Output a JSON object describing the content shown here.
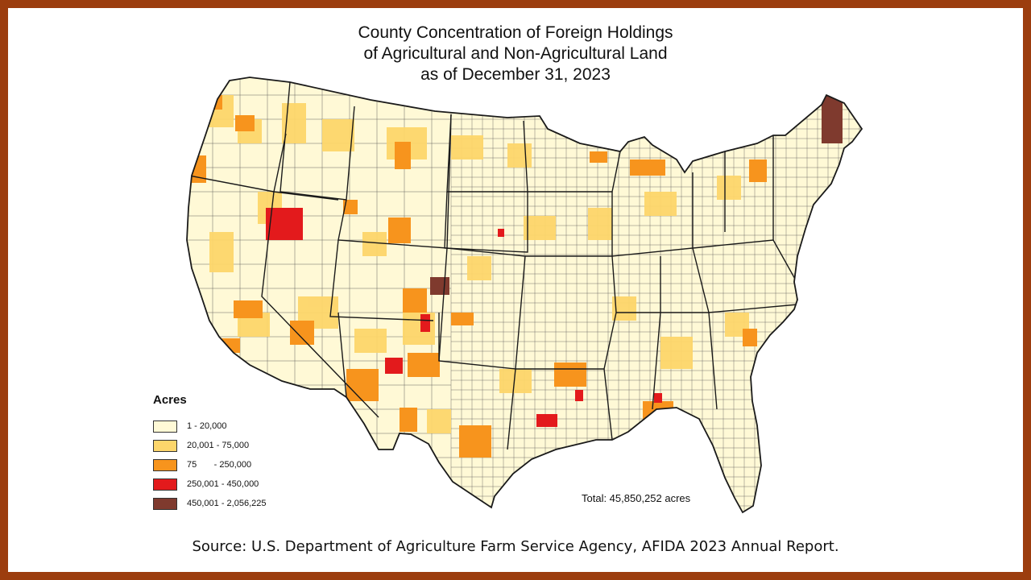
{
  "title": {
    "line1": "County Concentration of Foreign Holdings",
    "line2": "of Agricultural and Non-Agricultural Land",
    "line3": "as of December 31, 2023"
  },
  "legend": {
    "title": "Acres",
    "items": [
      {
        "label": "1 - 20,000",
        "color": "#fff9d6"
      },
      {
        "label": "20,001 - 75,000",
        "color": "#fdd66b"
      },
      {
        "label": "75       - 250,000",
        "color": "#f7941d"
      },
      {
        "label": "250,001 - 450,000",
        "color": "#e31a1c"
      },
      {
        "label": "450,001 - 2,056,225",
        "color": "#7f3a2e"
      }
    ]
  },
  "total": "Total: 45,850,252 acres",
  "source": "Source: U.S. Department of Agriculture Farm Service Agency, AFIDA 2023 Annual Report.",
  "colors": {
    "frame": "#9c3d0e",
    "outline": "#1a1a1a",
    "no_data": "#ffffff"
  }
}
